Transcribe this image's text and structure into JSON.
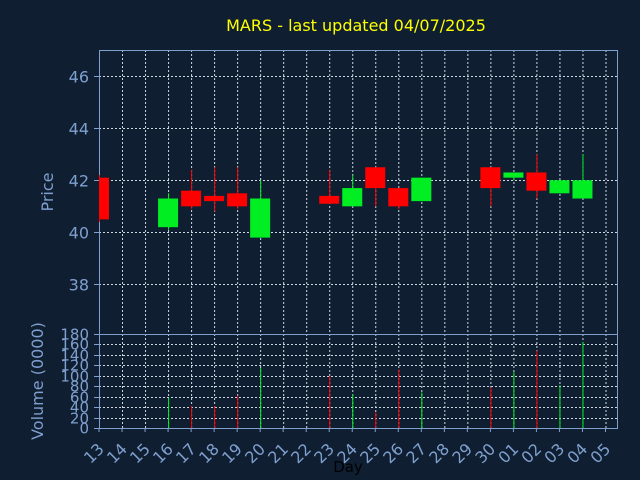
{
  "chart_data": {
    "type": "candlestick",
    "title": "MARS - last updated 04/07/2025",
    "xlabel": "Day",
    "price_panel": {
      "ylabel": "Price",
      "ylim": [
        36.1,
        47.0
      ],
      "yticks": [
        38,
        40,
        42,
        44,
        46
      ]
    },
    "volume_panel": {
      "ylabel": "Volume (0000)",
      "ylim": [
        0,
        180
      ],
      "yticks": [
        0,
        20,
        40,
        60,
        80,
        100,
        120,
        140,
        160,
        180
      ]
    },
    "x_ticks": [
      "13",
      "14",
      "15",
      "16",
      "17",
      "18",
      "19",
      "20",
      "21",
      "22",
      "23",
      "24",
      "25",
      "26",
      "27",
      "28",
      "29",
      "30",
      "01",
      "02",
      "03",
      "04",
      "05"
    ],
    "colors": {
      "background": "#0f1f31",
      "up": "#00ee22",
      "down": "#ff0000",
      "title": "#ffff00",
      "axis_text": "#7f9fcf",
      "axis_line": "#7f9fcf",
      "grid": "#cfd8e3"
    },
    "candles": [
      {
        "x": "13",
        "open": 42.1,
        "high": 42.2,
        "low": 40.4,
        "close": 40.5,
        "volume": 0
      },
      {
        "x": "16",
        "open": 40.2,
        "high": 41.5,
        "low": 40.1,
        "close": 41.3,
        "volume": 58
      },
      {
        "x": "17",
        "open": 41.6,
        "high": 42.4,
        "low": 40.9,
        "close": 41.0,
        "volume": 42
      },
      {
        "x": "18",
        "open": 41.4,
        "high": 42.5,
        "low": 40.8,
        "close": 41.2,
        "volume": 42
      },
      {
        "x": "19",
        "open": 41.5,
        "high": 42.5,
        "low": 40.9,
        "close": 41.0,
        "volume": 62
      },
      {
        "x": "20",
        "open": 39.8,
        "high": 42.0,
        "low": 39.8,
        "close": 41.3,
        "volume": 115
      },
      {
        "x": "23",
        "open": 41.4,
        "high": 42.4,
        "low": 41.1,
        "close": 41.1,
        "volume": 100
      },
      {
        "x": "24",
        "open": 41.0,
        "high": 42.2,
        "low": 41.0,
        "close": 41.7,
        "volume": 65
      },
      {
        "x": "25",
        "open": 42.5,
        "high": 42.5,
        "low": 41.0,
        "close": 41.7,
        "volume": 30
      },
      {
        "x": "26",
        "open": 41.7,
        "high": 41.7,
        "low": 40.9,
        "close": 41.0,
        "volume": 112
      },
      {
        "x": "27",
        "open": 41.2,
        "high": 42.1,
        "low": 41.2,
        "close": 42.1,
        "volume": 68
      },
      {
        "x": "30",
        "open": 42.5,
        "high": 42.5,
        "low": 41.0,
        "close": 41.7,
        "volume": 78
      },
      {
        "x": "01",
        "open": 42.1,
        "high": 42.3,
        "low": 42.0,
        "close": 42.3,
        "volume": 108
      },
      {
        "x": "02",
        "open": 42.3,
        "high": 43.0,
        "low": 41.3,
        "close": 41.6,
        "volume": 148
      },
      {
        "x": "03",
        "open": 41.5,
        "high": 42.0,
        "low": 41.5,
        "close": 42.0,
        "volume": 82
      },
      {
        "x": "04",
        "open": 41.3,
        "high": 43.0,
        "low": 41.3,
        "close": 42.0,
        "volume": 165
      }
    ]
  }
}
